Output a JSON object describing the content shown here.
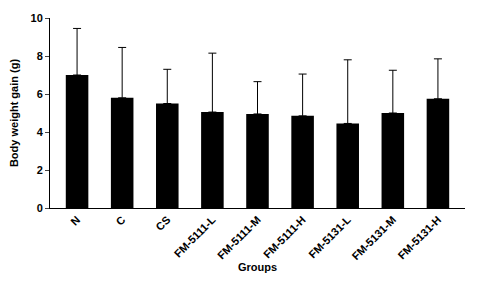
{
  "chart_data": {
    "type": "bar",
    "x_label": "Groups",
    "y_label": "Body weight gain (g)",
    "categories": [
      "N",
      "C",
      "CS",
      "FM-5111-L",
      "FM-5111-M",
      "FM-5111-H",
      "FM-5131-L",
      "FM-5131-M",
      "FM-5131-H"
    ],
    "values": [
      7.0,
      5.8,
      5.5,
      5.05,
      4.95,
      4.85,
      4.45,
      5.0,
      5.75
    ],
    "errors": [
      2.45,
      2.65,
      1.8,
      3.1,
      1.7,
      2.2,
      3.35,
      2.25,
      2.1
    ],
    "color": "#000000",
    "ylim": [
      0,
      10
    ],
    "yticks": [
      0,
      2,
      4,
      6,
      8,
      10
    ],
    "grid": false
  }
}
